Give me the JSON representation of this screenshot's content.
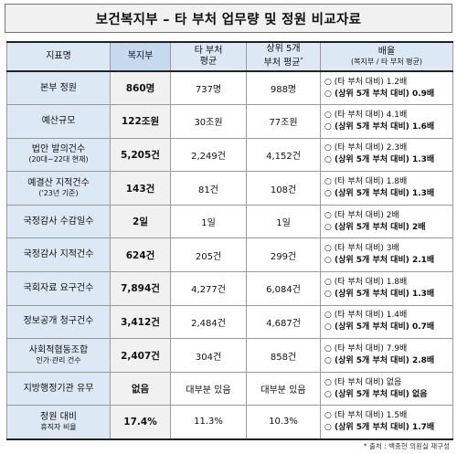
{
  "title": "보건복지부 – 타 부처 업무량 및 정원 비교자료",
  "headers": {
    "indicator": "지표명",
    "mohw": "복지부",
    "other_avg_l1": "타 부처",
    "other_avg_l2": "평균",
    "top5_l1": "상위 5개",
    "top5_l2": "부처 평균",
    "top5_mark": "*",
    "ratio_l1": "배율",
    "ratio_l2": "(복지부 / 타 부처 평균)"
  },
  "rows": [
    {
      "name": "본부 정원",
      "sub": "",
      "mohw": "860명",
      "other": "737명",
      "top5": "988명",
      "r1": "○ (타 부처 대비) 1.2배",
      "r2": "○ (상위 5개 부처 대비) 0.9배"
    },
    {
      "name": "예산규모",
      "sub": "",
      "mohw": "122조원",
      "other": "30조원",
      "top5": "77조원",
      "r1": "○ (타 부처 대비) 4.1배",
      "r2": "○ (상위 5개 부처 대비) 1.6배"
    },
    {
      "name": "법안 발의건수",
      "sub": "(20대~22대 현재)",
      "mohw": "5,205건",
      "other": "2,249건",
      "top5": "4,152건",
      "r1": "○ (타 부처 대비) 2.3배",
      "r2": "○ (상위 5개 부처 대비) 1.3배"
    },
    {
      "name": "예결산 지적건수",
      "sub": "('23년 기준)",
      "mohw": "143건",
      "other": "81건",
      "top5": "108건",
      "r1": "○ (타 부처 대비) 1.8배",
      "r2": "○ (상위 5개 부처 대비) 1.3배"
    },
    {
      "name": "국정감사 수감일수",
      "sub": "",
      "mohw": "2일",
      "other": "1일",
      "top5": "1일",
      "r1": "○ (타 부처 대비) 2배",
      "r2": "○ (상위 5개 부처 대비) 2배"
    },
    {
      "name": "국정감사 지적건수",
      "sub": "",
      "mohw": "624건",
      "other": "205건",
      "top5": "299건",
      "r1": "○ (타 부처 대비) 3배",
      "r2": "○ (상위 5개 부처 대비) 2.1배"
    },
    {
      "name": "국회자료 요구건수",
      "sub": "",
      "mohw": "7,894건",
      "other": "4,277건",
      "top5": "6,084건",
      "r1": "○ (타 부처 대비) 1.8배",
      "r2": "○ (상위 5개 부처 대비) 1.3배"
    },
    {
      "name": "정보공개 청구건수",
      "sub": "",
      "mohw": "3,412건",
      "other": "2,484건",
      "top5": "4,687건",
      "r1": "○ (타 부처 대비) 1.4배",
      "r2": "○ (상위 5개 부처 대비) 0.7배"
    },
    {
      "name": "사회적협동조합",
      "sub": "인가·관리 건수",
      "mohw": "2,407건",
      "other": "304건",
      "top5": "858건",
      "r1": "○ (타 부처 대비) 7.9배",
      "r2": "○ (상위 5개 부처 대비) 2.8배"
    },
    {
      "name": "지방행정기관 유무",
      "sub": "",
      "mohw": "없음",
      "other": "대부분 있음",
      "top5": "대부분 있음",
      "r1": "○ (타 부처 대비) 없음",
      "r2": "○ (상위 5개 부처 대비) 없음"
    },
    {
      "name": "정원 대비",
      "sub": "휴직자 비율",
      "mohw": "17.4%",
      "other": "11.3%",
      "top5": "10.3%",
      "r1": "○ (타 부처 대비) 1.5배",
      "r2": "○ (상위 5개 부처 대비) 1.7배"
    }
  ],
  "source": "* 출처 : 백종헌 의원실 재구성"
}
